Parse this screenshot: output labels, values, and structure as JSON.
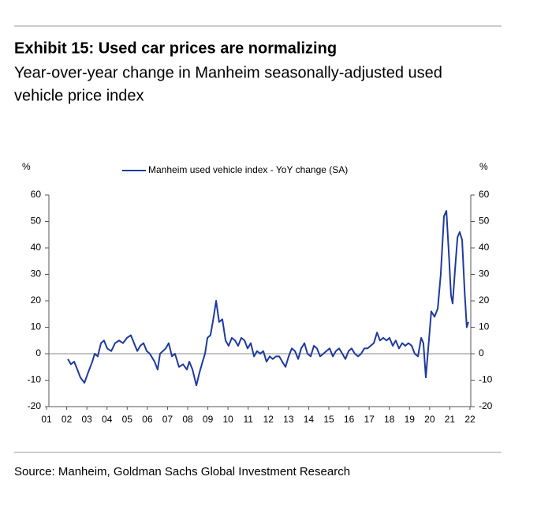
{
  "chart_data": {
    "type": "line",
    "title": "Exhibit 15: Used car prices are normalizing",
    "subtitle": [
      "Year-over-year change in Manheim seasonally-adjusted used",
      "vehicle price index"
    ],
    "y_label": "%",
    "y2_label": "%",
    "source": "Source: Manheim, Goldman Sachs Global Investment Research",
    "legend": "top",
    "x": [
      2002.06,
      2002.21,
      2002.37,
      2002.53,
      2002.68,
      2002.88,
      2003.07,
      2003.27,
      2003.39,
      2003.54,
      2003.7,
      2003.85,
      2004.01,
      2004.21,
      2004.4,
      2004.6,
      2004.79,
      2004.99,
      2005.18,
      2005.34,
      2005.5,
      2005.65,
      2005.81,
      2005.97,
      2006.12,
      2006.36,
      2006.51,
      2006.63,
      2006.91,
      2007.06,
      2007.22,
      2007.37,
      2007.57,
      2007.77,
      2007.96,
      2008.08,
      2008.24,
      2008.43,
      2008.59,
      2008.74,
      2008.86,
      2008.98,
      2009.13,
      2009.29,
      2009.41,
      2009.56,
      2009.72,
      2009.88,
      2010.03,
      2010.19,
      2010.35,
      2010.5,
      2010.66,
      2010.82,
      2010.97,
      2011.13,
      2011.29,
      2011.44,
      2011.6,
      2011.75,
      2011.91,
      2012.07,
      2012.22,
      2012.38,
      2012.54,
      2012.69,
      2012.85,
      2013.01,
      2013.16,
      2013.32,
      2013.48,
      2013.63,
      2013.79,
      2013.94,
      2014.1,
      2014.26,
      2014.41,
      2014.57,
      2014.73,
      2014.88,
      2015.04,
      2015.2,
      2015.35,
      2015.51,
      2015.67,
      2015.82,
      2015.98,
      2016.13,
      2016.29,
      2016.45,
      2016.6,
      2016.76,
      2016.92,
      2017.07,
      2017.23,
      2017.39,
      2017.54,
      2017.7,
      2017.86,
      2018.01,
      2018.17,
      2018.32,
      2018.48,
      2018.64,
      2018.79,
      2018.95,
      2019.11,
      2019.26,
      2019.42,
      2019.58,
      2019.69,
      2019.81,
      2019.93,
      2020.08,
      2020.24,
      2020.4,
      2020.55,
      2020.71,
      2020.83,
      2020.95,
      2021.06,
      2021.14,
      2021.26,
      2021.38,
      2021.49,
      2021.61,
      2021.73,
      2021.84,
      2021.92
    ],
    "series": [
      {
        "name": "Manheim used vehicle index - YoY change (SA)",
        "color": "#1f3a9e",
        "values": [
          -2,
          -4,
          -3,
          -6,
          -9,
          -11,
          -7,
          -3,
          0,
          -1,
          4,
          5,
          2,
          1,
          4,
          5,
          4,
          6,
          7,
          4,
          1,
          3,
          4,
          1,
          0,
          -3,
          -6,
          0,
          2,
          4,
          -1,
          0,
          -5,
          -4,
          -6,
          -3,
          -6,
          -12,
          -7,
          -3,
          0,
          6,
          7,
          14,
          20,
          12,
          13,
          5,
          3,
          6,
          5,
          3,
          6,
          5,
          2,
          4,
          -1,
          1,
          0,
          1,
          -3,
          -1,
          -2,
          -1,
          -1,
          -3,
          -5,
          -1,
          2,
          1,
          -2,
          2,
          4,
          0,
          -1,
          3,
          2,
          -1,
          0,
          1,
          2,
          -1,
          1,
          2,
          0,
          -2,
          1,
          2,
          0,
          -1,
          0,
          2,
          2,
          3,
          4,
          8,
          5,
          6,
          5,
          6,
          3,
          5,
          2,
          4,
          3,
          4,
          3,
          0,
          -1,
          6,
          4,
          -9,
          2,
          16,
          14,
          17,
          30,
          52,
          54,
          38,
          22,
          19,
          32,
          44,
          46,
          43,
          24,
          10,
          12
        ]
      }
    ],
    "xlim": [
      2001,
      2022
    ],
    "xticks": [
      {
        "value": 2001,
        "label": "01"
      },
      {
        "value": 2002,
        "label": "02"
      },
      {
        "value": 2003,
        "label": "03"
      },
      {
        "value": 2004,
        "label": "04"
      },
      {
        "value": 2005,
        "label": "05"
      },
      {
        "value": 2006,
        "label": "06"
      },
      {
        "value": 2007,
        "label": "07"
      },
      {
        "value": 2008,
        "label": "08"
      },
      {
        "value": 2009,
        "label": "09"
      },
      {
        "value": 2010,
        "label": "10"
      },
      {
        "value": 2011,
        "label": "11"
      },
      {
        "value": 2012,
        "label": "12"
      },
      {
        "value": 2013,
        "label": "13"
      },
      {
        "value": 2014,
        "label": "14"
      },
      {
        "value": 2015,
        "label": "15"
      },
      {
        "value": 2016,
        "label": "16"
      },
      {
        "value": 2017,
        "label": "17"
      },
      {
        "value": 2018,
        "label": "18"
      },
      {
        "value": 2019,
        "label": "19"
      },
      {
        "value": 2020,
        "label": "20"
      },
      {
        "value": 2021,
        "label": "21"
      },
      {
        "value": 2022,
        "label": "22"
      }
    ],
    "ylim": [
      -20,
      60
    ],
    "yticks": [
      -20,
      -10,
      0,
      10,
      20,
      30,
      40,
      50,
      60
    ],
    "y2lim": [
      -20,
      60
    ],
    "y2ticks": [
      -20,
      -10,
      0,
      10,
      20,
      30,
      40,
      50,
      60
    ]
  }
}
